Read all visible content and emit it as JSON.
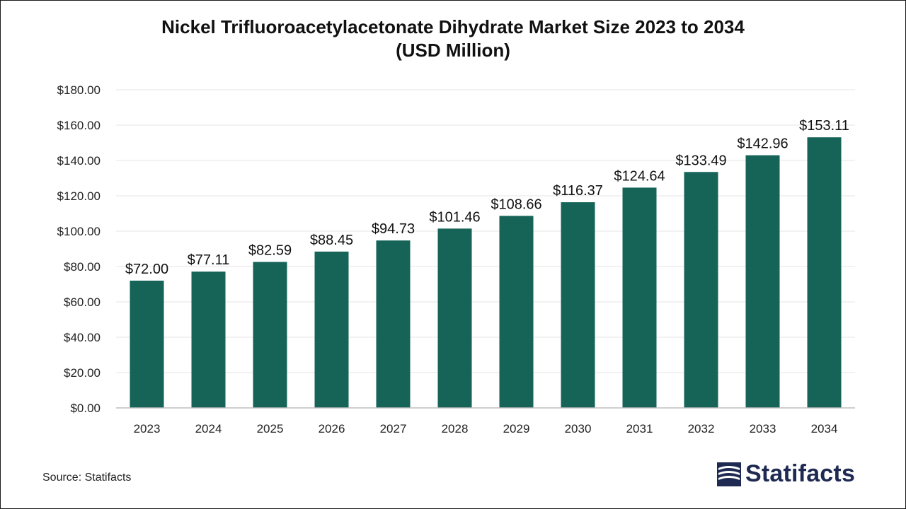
{
  "chart_data": {
    "type": "bar",
    "title_line1": "Nickel Trifluoroacetylacetonate Dihydrate Market Size 2023 to 2034",
    "title_line2": "(USD Million)",
    "categories": [
      "2023",
      "2024",
      "2025",
      "2026",
      "2027",
      "2028",
      "2029",
      "2030",
      "2031",
      "2032",
      "2033",
      "2034"
    ],
    "values": [
      72.0,
      77.11,
      82.59,
      88.45,
      94.73,
      101.46,
      108.66,
      116.37,
      124.64,
      133.49,
      142.96,
      153.11
    ],
    "value_labels": [
      "$72.00",
      "$77.11",
      "$82.59",
      "$88.45",
      "$94.73",
      "$101.46",
      "$108.66",
      "$116.37",
      "$124.64",
      "$133.49",
      "$142.96",
      "$153.11"
    ],
    "y_ticks": [
      0,
      20,
      40,
      60,
      80,
      100,
      120,
      140,
      160,
      180
    ],
    "y_tick_labels": [
      "$0.00",
      "$20.00",
      "$40.00",
      "$60.00",
      "$80.00",
      "$100.00",
      "$120.00",
      "$140.00",
      "$160.00",
      "$180.00"
    ],
    "ylim": [
      0,
      180
    ],
    "grid": true,
    "legend": "none",
    "bar_color": "#166358"
  },
  "footer": {
    "source": "Source: Statifacts",
    "brand": "Statifacts",
    "brand_color": "#1e2a52"
  }
}
